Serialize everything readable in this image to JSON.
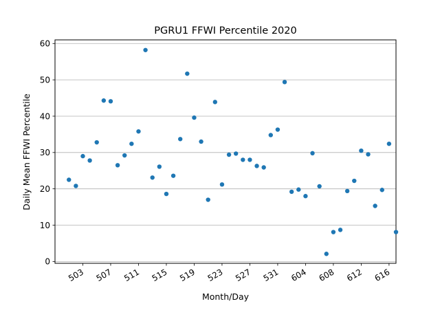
{
  "chart_data": {
    "type": "scatter",
    "title": "PGRU1 FFWI Percentile 2020",
    "xlabel": "Month/Day",
    "ylabel": "Daily Mean FFWI Percentile",
    "ylim": [
      -0.5,
      61
    ],
    "xlim": [
      0,
      49
    ],
    "yticks": [
      0,
      10,
      20,
      30,
      40,
      50,
      60
    ],
    "xticks": [
      {
        "pos": 4,
        "label": "503"
      },
      {
        "pos": 8,
        "label": "507"
      },
      {
        "pos": 12,
        "label": "511"
      },
      {
        "pos": 16,
        "label": "515"
      },
      {
        "pos": 20,
        "label": "519"
      },
      {
        "pos": 24,
        "label": "523"
      },
      {
        "pos": 28,
        "label": "527"
      },
      {
        "pos": 32,
        "label": "531"
      },
      {
        "pos": 36,
        "label": "604"
      },
      {
        "pos": 40,
        "label": "608"
      },
      {
        "pos": 44,
        "label": "612"
      },
      {
        "pos": 48,
        "label": "616"
      }
    ],
    "grid": "horizontal",
    "color": "#1f77b4",
    "x": [
      2,
      3,
      4,
      5,
      6,
      7,
      8,
      9,
      10,
      11,
      12,
      13,
      14,
      15,
      16,
      17,
      18,
      19,
      20,
      21,
      22,
      23,
      24,
      25,
      26,
      27,
      28,
      29,
      30,
      31,
      32,
      33,
      34,
      35,
      36,
      37,
      38,
      39,
      40,
      41,
      42,
      43,
      44,
      45,
      46,
      47,
      48,
      49,
      50
    ],
    "values": [
      22.5,
      20.8,
      29.0,
      27.8,
      32.8,
      44.3,
      44.1,
      26.5,
      29.2,
      32.4,
      35.8,
      58.2,
      23.1,
      26.1,
      18.6,
      23.6,
      33.7,
      51.7,
      39.6,
      33.0,
      17.0,
      43.9,
      21.2,
      29.4,
      29.7,
      28.0,
      28.0,
      26.3,
      25.9,
      34.8,
      36.3,
      49.4,
      19.2,
      19.8,
      18.0,
      29.8,
      20.7,
      2.1,
      8.1,
      8.7,
      19.4,
      22.2,
      30.5,
      29.5,
      15.3,
      19.7,
      32.4,
      8.1,
      null
    ]
  }
}
